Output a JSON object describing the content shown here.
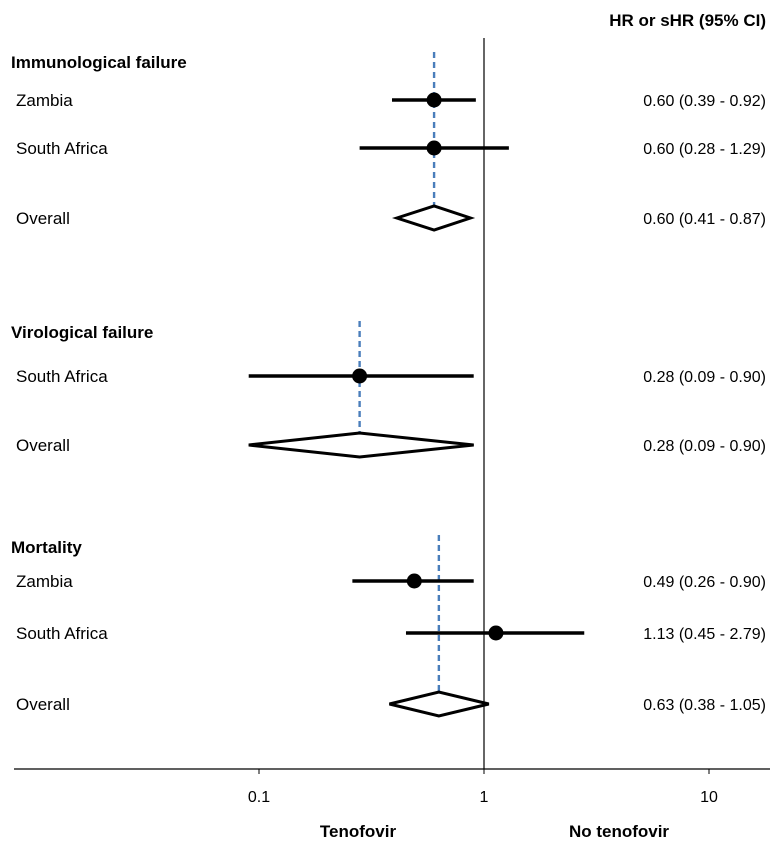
{
  "chart_data": {
    "type": "forest",
    "header": "HR or sHR (95% CI)",
    "x_scale": "log",
    "xlim": [
      0.01,
      14
    ],
    "xticks": [
      {
        "value": 0.1,
        "label": "0.1"
      },
      {
        "value": 1,
        "label": "1"
      },
      {
        "value": 10,
        "label": "10"
      }
    ],
    "null_line": 1,
    "direction_labels": {
      "left": "Tenofovir",
      "right": "No tenofovir"
    },
    "colors": {
      "marker": "#000000",
      "pooled_line": "#4a7ebb"
    },
    "groups": [
      {
        "title": "Immunological failure",
        "rows": [
          {
            "label": "Zambia",
            "kind": "study",
            "est": 0.6,
            "lo": 0.39,
            "hi": 0.92,
            "ci_text": "0.60 (0.39 - 0.92)"
          },
          {
            "label": "South Africa",
            "kind": "study",
            "est": 0.6,
            "lo": 0.28,
            "hi": 1.29,
            "ci_text": "0.60 (0.28 - 1.29)"
          },
          {
            "label": "Overall",
            "kind": "overall",
            "est": 0.6,
            "lo": 0.41,
            "hi": 0.87,
            "ci_text": "0.60 (0.41 - 0.87)"
          }
        ]
      },
      {
        "title": "Virological failure",
        "rows": [
          {
            "label": "South Africa",
            "kind": "study",
            "est": 0.28,
            "lo": 0.09,
            "hi": 0.9,
            "ci_text": "0.28 (0.09 - 0.90)"
          },
          {
            "label": "Overall",
            "kind": "overall",
            "est": 0.28,
            "lo": 0.09,
            "hi": 0.9,
            "ci_text": "0.28 (0.09 - 0.90)"
          }
        ]
      },
      {
        "title": "Mortality",
        "rows": [
          {
            "label": "Zambia",
            "kind": "study",
            "est": 0.49,
            "lo": 0.26,
            "hi": 0.9,
            "ci_text": "0.49 (0.26 - 0.90)"
          },
          {
            "label": "South Africa",
            "kind": "study",
            "est": 1.13,
            "lo": 0.45,
            "hi": 2.79,
            "ci_text": "1.13 (0.45 - 2.79)"
          },
          {
            "label": "Overall",
            "kind": "overall",
            "est": 0.63,
            "lo": 0.38,
            "hi": 1.05,
            "ci_text": "0.63 (0.38 - 1.05)"
          }
        ]
      }
    ]
  }
}
